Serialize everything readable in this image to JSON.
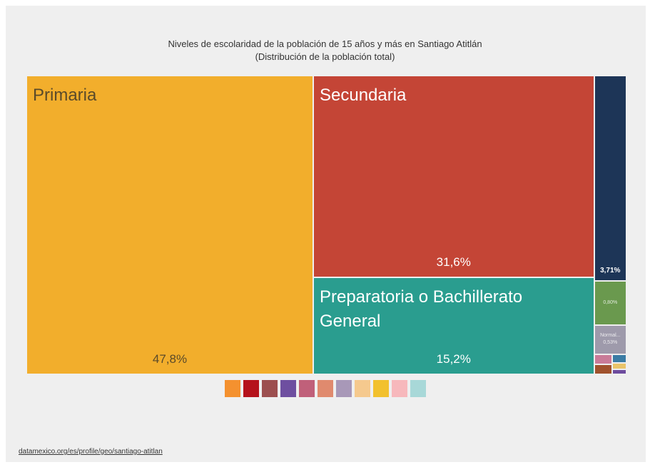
{
  "chart_data": {
    "type": "treemap",
    "title": "Niveles de escolaridad de la población de 15 años y más en Santiago Atitlán",
    "subtitle": "(Distribución de la población total)",
    "names": [
      "Primaria",
      "Secundaria",
      "Preparatoria o Bachillerato General",
      null,
      null,
      "Normal...",
      null,
      null,
      null,
      null,
      null
    ],
    "values": [
      47.8,
      31.6,
      15.2,
      3.71,
      0.8,
      0.53,
      0.1,
      0.1,
      0.07,
      0.05,
      0.04
    ],
    "value_labels": [
      "47,8%",
      "31,6%",
      "15,2%",
      "3,71%",
      "0,80%",
      "0,53%",
      null,
      null,
      null,
      null,
      null
    ],
    "colors": [
      "#f2ae2c",
      "#c44536",
      "#2a9d8f",
      "#1d3557",
      "#6a994e",
      "#9e9aab",
      "#c97b98",
      "#a0522d",
      "#3a7ca5",
      "#e9c46a",
      "#6d4c9e"
    ],
    "legend_colors": [
      "#f4912f",
      "#b5121b",
      "#9c4f4f",
      "#6e4fa0",
      "#c0607a",
      "#e08a6e",
      "#a898b8",
      "#f5c98e",
      "#f2c12e",
      "#f7b8bc",
      "#a8d8d8"
    ],
    "source": "datamexico.org/es/profile/geo/santiago-atitlan"
  }
}
